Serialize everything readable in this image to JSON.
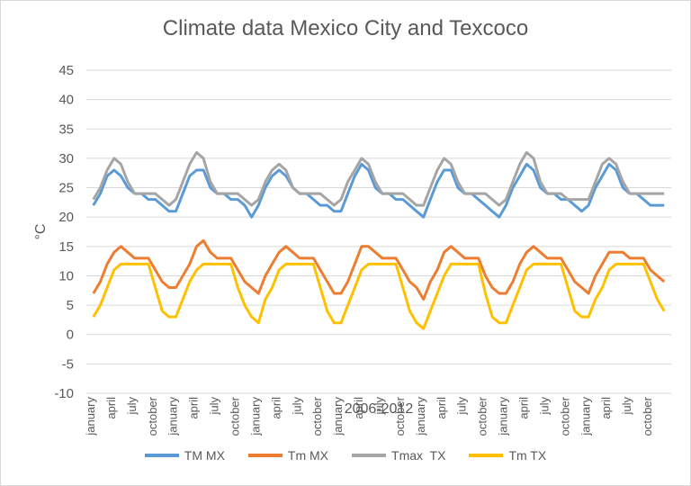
{
  "chart_data": {
    "type": "line",
    "title": "Climate data Mexico City and Texcoco",
    "xlabel": "2006-2012",
    "ylabel": "°C",
    "ylim": [
      -10,
      45
    ],
    "yticks": [
      -10,
      -5,
      0,
      5,
      10,
      15,
      20,
      25,
      30,
      35,
      40,
      45
    ],
    "grid": "horizontal",
    "legend_position": "bottom",
    "x_start_year": 2006,
    "x_end_year": 2012,
    "x_ticks": [
      {
        "label": "january",
        "year": 2006,
        "month": 1
      },
      {
        "label": "april",
        "year": 2006,
        "month": 4
      },
      {
        "label": "july",
        "year": 2006,
        "month": 7
      },
      {
        "label": "october",
        "year": 2006,
        "month": 10
      },
      {
        "label": "january",
        "year": 2007,
        "month": 1
      },
      {
        "label": "april",
        "year": 2007,
        "month": 4
      },
      {
        "label": "july",
        "year": 2007,
        "month": 7
      },
      {
        "label": "october",
        "year": 2007,
        "month": 10
      },
      {
        "label": "january",
        "year": 2008,
        "month": 1
      },
      {
        "label": "april",
        "year": 2008,
        "month": 4
      },
      {
        "label": "july",
        "year": 2008,
        "month": 7
      },
      {
        "label": "october",
        "year": 2008,
        "month": 10
      },
      {
        "label": "january",
        "year": 2009,
        "month": 1
      },
      {
        "label": "april",
        "year": 2009,
        "month": 4
      },
      {
        "label": "july",
        "year": 2009,
        "month": 7
      },
      {
        "label": "october",
        "year": 2009,
        "month": 10
      },
      {
        "label": "january",
        "year": 2010,
        "month": 1
      },
      {
        "label": "april",
        "year": 2010,
        "month": 4
      },
      {
        "label": "july",
        "year": 2010,
        "month": 7
      },
      {
        "label": "october",
        "year": 2010,
        "month": 10
      },
      {
        "label": "january",
        "year": 2011,
        "month": 1
      },
      {
        "label": "april",
        "year": 2011,
        "month": 4
      },
      {
        "label": "july",
        "year": 2011,
        "month": 7
      },
      {
        "label": "october",
        "year": 2011,
        "month": 10
      },
      {
        "label": "january",
        "year": 2012,
        "month": 1
      },
      {
        "label": "april",
        "year": 2012,
        "month": 4
      },
      {
        "label": "july",
        "year": 2012,
        "month": 7
      },
      {
        "label": "october",
        "year": 2012,
        "month": 10
      }
    ],
    "monthly_x": [
      "2006-01",
      "2006-02",
      "2006-03",
      "2006-04",
      "2006-05",
      "2006-06",
      "2006-07",
      "2006-08",
      "2006-09",
      "2006-10",
      "2006-11",
      "2006-12",
      "2007-01",
      "2007-02",
      "2007-03",
      "2007-04",
      "2007-05",
      "2007-06",
      "2007-07",
      "2007-08",
      "2007-09",
      "2007-10",
      "2007-11",
      "2007-12",
      "2008-01",
      "2008-02",
      "2008-03",
      "2008-04",
      "2008-05",
      "2008-06",
      "2008-07",
      "2008-08",
      "2008-09",
      "2008-10",
      "2008-11",
      "2008-12",
      "2009-01",
      "2009-02",
      "2009-03",
      "2009-04",
      "2009-05",
      "2009-06",
      "2009-07",
      "2009-08",
      "2009-09",
      "2009-10",
      "2009-11",
      "2009-12",
      "2010-01",
      "2010-02",
      "2010-03",
      "2010-04",
      "2010-05",
      "2010-06",
      "2010-07",
      "2010-08",
      "2010-09",
      "2010-10",
      "2010-11",
      "2010-12",
      "2011-01",
      "2011-02",
      "2011-03",
      "2011-04",
      "2011-05",
      "2011-06",
      "2011-07",
      "2011-08",
      "2011-09",
      "2011-10",
      "2011-11",
      "2011-12",
      "2012-01",
      "2012-02",
      "2012-03",
      "2012-04",
      "2012-05",
      "2012-06",
      "2012-07",
      "2012-08",
      "2012-09",
      "2012-10",
      "2012-11",
      "2012-12"
    ],
    "series": [
      {
        "name": "TM MX",
        "color": "#5b9bd5",
        "values": [
          22,
          24,
          27,
          28,
          27,
          25,
          24,
          24,
          23,
          23,
          22,
          21,
          21,
          24,
          27,
          28,
          28,
          25,
          24,
          24,
          23,
          23,
          22,
          20,
          22,
          25,
          27,
          28,
          27,
          25,
          24,
          24,
          23,
          22,
          22,
          21,
          21,
          24,
          27,
          29,
          28,
          25,
          24,
          24,
          23,
          23,
          22,
          21,
          20,
          23,
          26,
          28,
          28,
          25,
          24,
          24,
          23,
          22,
          21,
          20,
          22,
          25,
          27,
          29,
          28,
          25,
          24,
          24,
          23,
          23,
          22,
          21,
          22,
          25,
          27,
          29,
          28,
          25,
          24,
          24,
          23,
          22,
          22,
          22
        ]
      },
      {
        "name": "Tm MX",
        "color": "#ed7d31",
        "values": [
          7,
          9,
          12,
          14,
          15,
          14,
          13,
          13,
          13,
          11,
          9,
          8,
          8,
          10,
          12,
          15,
          16,
          14,
          13,
          13,
          13,
          11,
          9,
          8,
          7,
          10,
          12,
          14,
          15,
          14,
          13,
          13,
          13,
          11,
          9,
          7,
          7,
          9,
          12,
          15,
          15,
          14,
          13,
          13,
          13,
          11,
          9,
          8,
          6,
          9,
          11,
          14,
          15,
          14,
          13,
          13,
          13,
          10,
          8,
          7,
          7,
          9,
          12,
          14,
          15,
          14,
          13,
          13,
          13,
          11,
          9,
          8,
          7,
          10,
          12,
          14,
          14,
          14,
          13,
          13,
          13,
          11,
          10,
          9
        ]
      },
      {
        "name": "Tmax  TX",
        "color": "#a5a5a5",
        "values": [
          23,
          25,
          28,
          30,
          29,
          26,
          24,
          24,
          24,
          24,
          23,
          22,
          23,
          26,
          29,
          31,
          30,
          26,
          24,
          24,
          24,
          24,
          23,
          22,
          23,
          26,
          28,
          29,
          28,
          25,
          24,
          24,
          24,
          24,
          23,
          22,
          23,
          26,
          28,
          30,
          29,
          26,
          24,
          24,
          24,
          24,
          23,
          22,
          22,
          25,
          28,
          30,
          29,
          26,
          24,
          24,
          24,
          24,
          23,
          22,
          23,
          26,
          29,
          31,
          30,
          26,
          24,
          24,
          24,
          23,
          23,
          23,
          23,
          26,
          29,
          30,
          29,
          26,
          24,
          24,
          24,
          24,
          24,
          24
        ]
      },
      {
        "name": "Tm TX",
        "color": "#ffc000",
        "values": [
          3,
          5,
          8,
          11,
          12,
          12,
          12,
          12,
          12,
          8,
          4,
          3,
          3,
          6,
          9,
          11,
          12,
          12,
          12,
          12,
          12,
          8,
          5,
          3,
          2,
          6,
          8,
          11,
          12,
          12,
          12,
          12,
          12,
          8,
          4,
          2,
          2,
          5,
          8,
          11,
          12,
          12,
          12,
          12,
          12,
          8,
          4,
          2,
          1,
          4,
          7,
          10,
          12,
          12,
          12,
          12,
          12,
          7,
          3,
          2,
          2,
          5,
          8,
          11,
          12,
          12,
          12,
          12,
          12,
          8,
          4,
          3,
          3,
          6,
          8,
          11,
          12,
          12,
          12,
          12,
          12,
          9,
          6,
          4
        ]
      }
    ]
  }
}
